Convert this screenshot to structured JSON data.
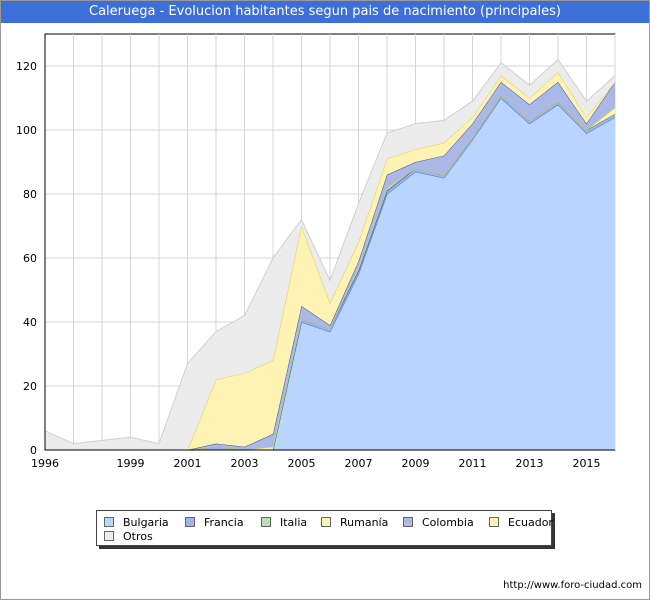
{
  "title": "Caleruega - Evolucion habitantes segun pais de nacimiento (principales)",
  "footer": "http://www.foro-ciudad.com",
  "chart_data": {
    "type": "area",
    "stacked": true,
    "x": [
      1996,
      1997,
      1998,
      1999,
      2000,
      2001,
      2002,
      2003,
      2004,
      2005,
      2006,
      2007,
      2008,
      2009,
      2010,
      2011,
      2012,
      2013,
      2014,
      2015,
      2016
    ],
    "x_ticks": [
      1996,
      1999,
      2001,
      2003,
      2005,
      2007,
      2009,
      2011,
      2013,
      2015
    ],
    "y_ticks": [
      0,
      20,
      40,
      60,
      80,
      100,
      120
    ],
    "xlim": [
      1996,
      2016
    ],
    "ylim": [
      0,
      130
    ],
    "grid": true,
    "legend_position": "bottom",
    "series": [
      {
        "name": "Bulgaria",
        "color": "#b8d4ff",
        "values": [
          0,
          0,
          0,
          0,
          0,
          0,
          0,
          0,
          0,
          40,
          37,
          55,
          80,
          87,
          85,
          97,
          110,
          102,
          108,
          99,
          104
        ]
      },
      {
        "name": "Francia",
        "color": "#9fb4f0",
        "values": [
          0,
          0,
          0,
          0,
          0,
          0,
          1,
          0,
          0,
          1,
          1,
          1,
          1,
          1,
          1,
          1,
          1,
          1,
          1,
          1,
          1
        ]
      },
      {
        "name": "Italia",
        "color": "#b8e0b0",
        "values": [
          0,
          0,
          0,
          0,
          0,
          0,
          0,
          0,
          0,
          0,
          0,
          1,
          1,
          0,
          0,
          0,
          0,
          0,
          0,
          0,
          0
        ]
      },
      {
        "name": "Rumanía",
        "color": "#fff3b3",
        "values": [
          0,
          0,
          0,
          0,
          0,
          0,
          0,
          0,
          1,
          0,
          0,
          0,
          0,
          0,
          0,
          0,
          0,
          0,
          0,
          0,
          2
        ]
      },
      {
        "name": "Colombia",
        "color": "#a9b8e6",
        "values": [
          0,
          0,
          0,
          0,
          0,
          0,
          1,
          1,
          4,
          4,
          1,
          2,
          4,
          2,
          6,
          4,
          4,
          5,
          6,
          2,
          8
        ]
      },
      {
        "name": "Ecuador",
        "color": "#fff3b3",
        "values": [
          0,
          0,
          0,
          0,
          0,
          0,
          20,
          23,
          23,
          25,
          7,
          6,
          5,
          4,
          4,
          2,
          2,
          2,
          3,
          2,
          0
        ]
      },
      {
        "name": "Otros",
        "color": "#ececec",
        "values": [
          6,
          2,
          3,
          4,
          2,
          27,
          15,
          18,
          32,
          2,
          7,
          12,
          8,
          8,
          7,
          5,
          4,
          4,
          4,
          5,
          2
        ]
      }
    ]
  }
}
